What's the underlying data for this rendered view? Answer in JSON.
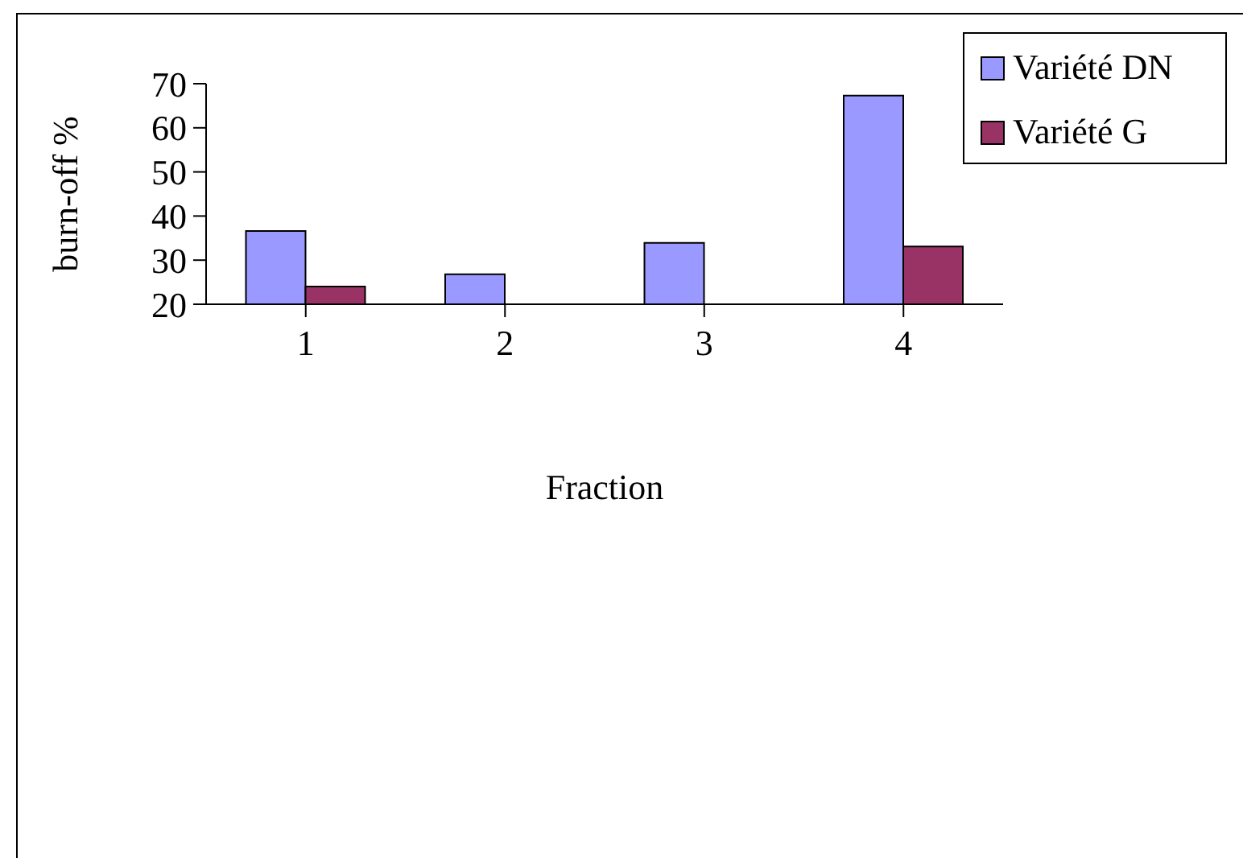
{
  "chart_data": {
    "type": "bar",
    "xlabel": "Fraction",
    "ylabel": "burn-off %",
    "categories": [
      "1",
      "2",
      "3",
      "4"
    ],
    "series": [
      {
        "name": "Variété DN",
        "color": "#9999ff",
        "values": [
          36.6,
          26.8,
          33.9,
          67.3
        ]
      },
      {
        "name": "Variété G",
        "color": "#993366",
        "values": [
          24,
          null,
          null,
          33.1
        ]
      }
    ],
    "ylim": [
      20,
      70
    ],
    "yticks": [
      20,
      30,
      40,
      50,
      60,
      70
    ],
    "grid": false,
    "legend": "top right"
  }
}
